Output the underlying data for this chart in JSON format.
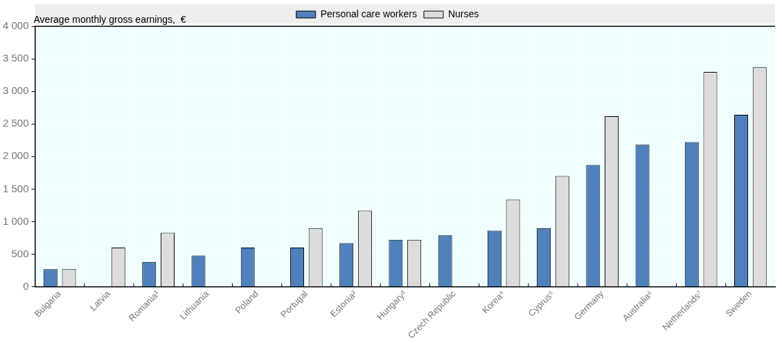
{
  "chart_data": {
    "type": "bar",
    "ylabel": "Average monthly gross earnings,  €",
    "categories": [
      "Bulgaria",
      "Latvia",
      "Romania¹",
      "Lithuania",
      "Poland",
      "Portugal",
      "Estonia²",
      "Hungary³",
      "Czech Republic",
      "Korea⁴",
      "Cyprus⁵",
      "Germany",
      "Australia⁶",
      "Netherlands⁷",
      "Sweden"
    ],
    "series": [
      {
        "name": "Personal care workers",
        "color": "#4f81bd",
        "values": [
          270,
          null,
          380,
          480,
          600,
          600,
          670,
          720,
          790,
          860,
          900,
          1870,
          2180,
          2220,
          2640
        ]
      },
      {
        "name": "Nurses",
        "color": "#dcdcdc",
        "values": [
          270,
          600,
          830,
          null,
          null,
          900,
          1170,
          720,
          null,
          1340,
          1700,
          2620,
          null,
          3300,
          3370
        ]
      }
    ],
    "ylim": [
      0,
      4000
    ],
    "yticks": [
      0,
      500,
      {
        "value": 1000,
        "label": "1 000"
      },
      {
        "value": 1500,
        "label": "1 500"
      },
      {
        "value": 2000,
        "label": "2 000"
      },
      {
        "value": 2500,
        "label": "2 500"
      },
      {
        "value": 3000,
        "label": "3 000"
      },
      {
        "value": 3500,
        "label": "3 500"
      },
      {
        "value": 4000,
        "label": "4 000"
      }
    ],
    "grid": true,
    "legend": "top"
  }
}
